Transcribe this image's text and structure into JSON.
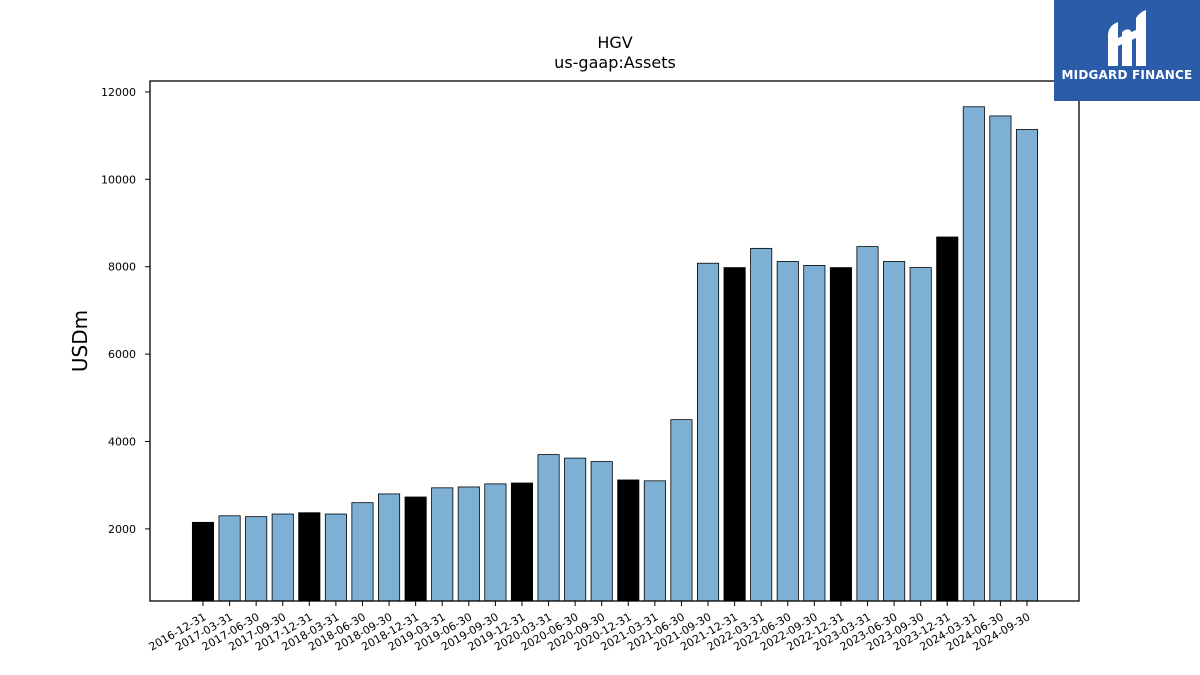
{
  "chart_data": {
    "type": "bar",
    "title": "HGV",
    "subtitle": "us-gaap:Assets",
    "ylabel": "USDm",
    "xlabel": "",
    "ylim": [
      350,
      12250
    ],
    "yticks": [
      2000,
      4000,
      6000,
      8000,
      10000,
      12000
    ],
    "grid": false,
    "categories": [
      "2016-12-31",
      "2017-03-31",
      "2017-06-30",
      "2017-09-30",
      "2017-12-31",
      "2018-03-31",
      "2018-06-30",
      "2018-09-30",
      "2018-12-31",
      "2019-03-31",
      "2019-06-30",
      "2019-09-30",
      "2019-12-31",
      "2020-03-31",
      "2020-06-30",
      "2020-09-30",
      "2020-12-31",
      "2021-03-31",
      "2021-06-30",
      "2021-09-30",
      "2021-12-31",
      "2022-03-31",
      "2022-06-30",
      "2022-09-30",
      "2022-12-31",
      "2023-03-31",
      "2023-06-30",
      "2023-09-30",
      "2023-12-31",
      "2024-03-31",
      "2024-06-30",
      "2024-09-30"
    ],
    "values": [
      2150,
      2300,
      2280,
      2340,
      2370,
      2340,
      2600,
      2800,
      2730,
      2940,
      2960,
      3030,
      3050,
      3700,
      3620,
      3540,
      3120,
      3100,
      4500,
      8080,
      7980,
      8420,
      8120,
      8030,
      7980,
      8460,
      8120,
      7980,
      8680,
      11660,
      11450,
      11140
    ],
    "colors": {
      "annual": "#000000",
      "quarterly": "#7eb0d5",
      "edge": "#000000"
    },
    "bar_colors": [
      "annual",
      "quarterly",
      "quarterly",
      "quarterly",
      "annual",
      "quarterly",
      "quarterly",
      "quarterly",
      "annual",
      "quarterly",
      "quarterly",
      "quarterly",
      "annual",
      "quarterly",
      "quarterly",
      "quarterly",
      "annual",
      "quarterly",
      "quarterly",
      "quarterly",
      "annual",
      "quarterly",
      "quarterly",
      "quarterly",
      "annual",
      "quarterly",
      "quarterly",
      "quarterly",
      "annual",
      "quarterly",
      "quarterly",
      "quarterly"
    ]
  },
  "logo": {
    "text": "MIDGARD FINANCE",
    "background": "#2a5caa"
  }
}
